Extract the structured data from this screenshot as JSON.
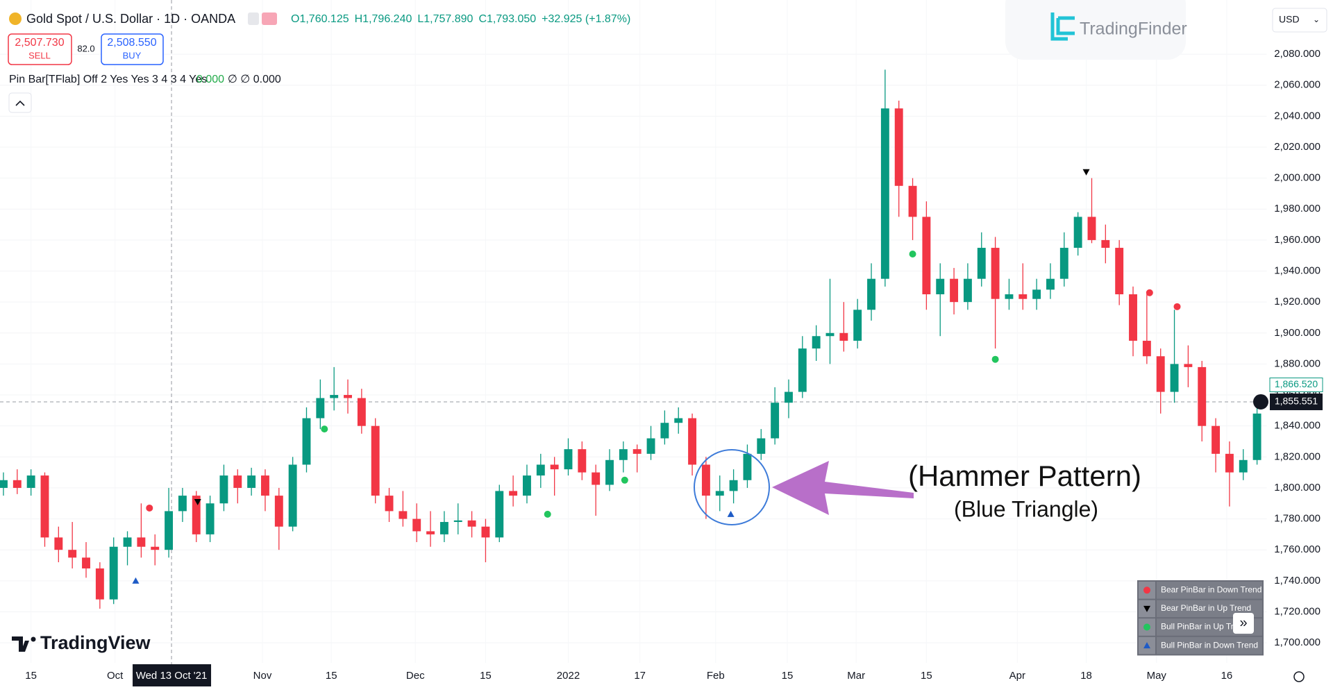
{
  "header": {
    "symbol": "Gold Spot / U.S. Dollar · 1D · OANDA",
    "ohlc": [
      "O1,760.125",
      "H1,796.240",
      "L1,757.890",
      "C1,793.050",
      "+32.925 (+1.87%)"
    ],
    "sell_price": "2,507.730",
    "sell_label": "SELL",
    "spread": "82.0",
    "buy_price": "2,508.550",
    "buy_label": "BUY",
    "indicator": "Pin Bar[TFlab] Off 2 Yes Yes 3 4 3 4 Yes",
    "indicator_value": "0.000",
    "indicator_rest": "∅ ∅ 0.000",
    "currency": "USD",
    "watermark": "TradingFinder",
    "logo": "TradingView"
  },
  "chart_data": {
    "type": "candlestick",
    "up_color": "#089981",
    "down_color": "#f23645",
    "ohlc": [
      [
        1800,
        1810,
        1795,
        1805
      ],
      [
        1805,
        1812,
        1796,
        1800
      ],
      [
        1800,
        1812,
        1795,
        1808
      ],
      [
        1808,
        1810,
        1762,
        1768
      ],
      [
        1768,
        1775,
        1752,
        1760
      ],
      [
        1760,
        1778,
        1748,
        1755
      ],
      [
        1755,
        1765,
        1742,
        1748
      ],
      [
        1748,
        1752,
        1722,
        1728
      ],
      [
        1728,
        1768,
        1725,
        1762
      ],
      [
        1762,
        1772,
        1750,
        1768
      ],
      [
        1768,
        1790,
        1755,
        1762
      ],
      [
        1762,
        1770,
        1750,
        1760
      ],
      [
        1760,
        1800,
        1755,
        1785
      ],
      [
        1785,
        1800,
        1778,
        1795
      ],
      [
        1795,
        1798,
        1765,
        1770
      ],
      [
        1770,
        1795,
        1765,
        1790
      ],
      [
        1790,
        1815,
        1785,
        1808
      ],
      [
        1808,
        1812,
        1790,
        1800
      ],
      [
        1800,
        1813,
        1795,
        1808
      ],
      [
        1808,
        1812,
        1785,
        1795
      ],
      [
        1795,
        1800,
        1760,
        1775
      ],
      [
        1775,
        1820,
        1772,
        1815
      ],
      [
        1815,
        1852,
        1810,
        1845
      ],
      [
        1845,
        1870,
        1838,
        1858
      ],
      [
        1858,
        1878,
        1850,
        1860
      ],
      [
        1860,
        1870,
        1848,
        1858
      ],
      [
        1858,
        1864,
        1835,
        1840
      ],
      [
        1840,
        1845,
        1790,
        1795
      ],
      [
        1795,
        1800,
        1778,
        1785
      ],
      [
        1785,
        1798,
        1775,
        1780
      ],
      [
        1780,
        1790,
        1765,
        1772
      ],
      [
        1772,
        1785,
        1762,
        1770
      ],
      [
        1770,
        1785,
        1765,
        1778
      ],
      [
        1778,
        1790,
        1770,
        1779
      ],
      [
        1779,
        1785,
        1768,
        1775
      ],
      [
        1775,
        1780,
        1752,
        1768
      ],
      [
        1768,
        1802,
        1765,
        1798
      ],
      [
        1798,
        1808,
        1788,
        1795
      ],
      [
        1795,
        1815,
        1790,
        1808
      ],
      [
        1808,
        1822,
        1800,
        1815
      ],
      [
        1815,
        1820,
        1795,
        1812
      ],
      [
        1812,
        1832,
        1808,
        1825
      ],
      [
        1825,
        1830,
        1805,
        1810
      ],
      [
        1810,
        1815,
        1782,
        1802
      ],
      [
        1802,
        1825,
        1798,
        1818
      ],
      [
        1818,
        1830,
        1810,
        1825
      ],
      [
        1825,
        1828,
        1810,
        1822
      ],
      [
        1822,
        1840,
        1818,
        1832
      ],
      [
        1832,
        1850,
        1828,
        1842
      ],
      [
        1842,
        1852,
        1835,
        1845
      ],
      [
        1845,
        1848,
        1808,
        1815
      ],
      [
        1815,
        1820,
        1780,
        1795
      ],
      [
        1795,
        1808,
        1785,
        1798
      ],
      [
        1798,
        1812,
        1790,
        1805
      ],
      [
        1805,
        1828,
        1800,
        1822
      ],
      [
        1822,
        1838,
        1818,
        1832
      ],
      [
        1832,
        1865,
        1828,
        1855
      ],
      [
        1855,
        1870,
        1845,
        1862
      ],
      [
        1862,
        1898,
        1858,
        1890
      ],
      [
        1890,
        1905,
        1882,
        1898
      ],
      [
        1898,
        1935,
        1880,
        1900
      ],
      [
        1900,
        1920,
        1888,
        1895
      ],
      [
        1895,
        1922,
        1890,
        1915
      ],
      [
        1915,
        1945,
        1908,
        1935
      ],
      [
        1935,
        2070,
        1930,
        2045
      ],
      [
        2045,
        2050,
        1975,
        1995
      ],
      [
        1995,
        2000,
        1960,
        1975
      ],
      [
        1975,
        1985,
        1915,
        1925
      ],
      [
        1925,
        1945,
        1898,
        1935
      ],
      [
        1935,
        1942,
        1912,
        1920
      ],
      [
        1920,
        1945,
        1915,
        1935
      ],
      [
        1935,
        1965,
        1930,
        1955
      ],
      [
        1955,
        1962,
        1890,
        1922
      ],
      [
        1922,
        1935,
        1915,
        1925
      ],
      [
        1925,
        1945,
        1915,
        1922
      ],
      [
        1922,
        1935,
        1915,
        1928
      ],
      [
        1928,
        1945,
        1922,
        1935
      ],
      [
        1935,
        1965,
        1930,
        1955
      ],
      [
        1955,
        1978,
        1950,
        1975
      ],
      [
        1975,
        2000,
        1958,
        1960
      ],
      [
        1960,
        1970,
        1945,
        1955
      ],
      [
        1955,
        1960,
        1918,
        1925
      ],
      [
        1925,
        1930,
        1885,
        1895
      ],
      [
        1895,
        1925,
        1880,
        1885
      ],
      [
        1885,
        1890,
        1848,
        1862
      ],
      [
        1862,
        1915,
        1855,
        1880
      ],
      [
        1880,
        1892,
        1865,
        1878
      ],
      [
        1878,
        1882,
        1830,
        1840
      ],
      [
        1840,
        1845,
        1810,
        1822
      ],
      [
        1822,
        1830,
        1788,
        1810
      ],
      [
        1810,
        1825,
        1805,
        1818
      ],
      [
        1818,
        1852,
        1815,
        1848
      ]
    ],
    "xlim": [
      -0.25,
      91.7
    ],
    "ylim": [
      1687,
      2115
    ],
    "xticks": [
      {
        "value": 2.0,
        "label": "15"
      },
      {
        "value": 8.1,
        "label": "Oct"
      },
      {
        "value": 18.8,
        "label": "Nov"
      },
      {
        "value": 23.8,
        "label": "15"
      },
      {
        "value": 29.9,
        "label": "Dec"
      },
      {
        "value": 35.0,
        "label": "15"
      },
      {
        "value": 41.0,
        "label": "2022"
      },
      {
        "value": 46.2,
        "label": "17"
      },
      {
        "value": 51.7,
        "label": "Feb"
      },
      {
        "value": 56.9,
        "label": "15"
      },
      {
        "value": 61.9,
        "label": "Mar"
      },
      {
        "value": 67.0,
        "label": "15"
      },
      {
        "value": 73.6,
        "label": "Apr"
      },
      {
        "value": 78.6,
        "label": "18"
      },
      {
        "value": 83.7,
        "label": "May"
      },
      {
        "value": 88.8,
        "label": "16"
      }
    ],
    "yticks": [
      {
        "value": 1700,
        "label": "1,700.000"
      },
      {
        "value": 1720,
        "label": "1,720.000"
      },
      {
        "value": 1740,
        "label": "1,740.000"
      },
      {
        "value": 1760,
        "label": "1,760.000"
      },
      {
        "value": 1780,
        "label": "1,780.000"
      },
      {
        "value": 1800,
        "label": "1,800.000"
      },
      {
        "value": 1820,
        "label": "1,820.000"
      },
      {
        "value": 1840,
        "label": "1,840.000"
      },
      {
        "value": 1860,
        "label": "1,860.000"
      },
      {
        "value": 1880,
        "label": "1,880.000"
      },
      {
        "value": 1900,
        "label": "1,900.000"
      },
      {
        "value": 1920,
        "label": "1,920.000"
      },
      {
        "value": 1940,
        "label": "1,940.000"
      },
      {
        "value": 1960,
        "label": "1,960.000"
      },
      {
        "value": 1980,
        "label": "1,980.000"
      },
      {
        "value": 2000,
        "label": "2,000.000"
      },
      {
        "value": 2020,
        "label": "2,020.000"
      },
      {
        "value": 2040,
        "label": "2,040.000"
      },
      {
        "value": 2060,
        "label": "2,060.000"
      },
      {
        "value": 2080,
        "label": "2,080.000"
      }
    ],
    "legend": [
      {
        "name": "Bear PinBar in Down Trend",
        "color": "#f23645",
        "shape": "dot"
      },
      {
        "name": "Bear PinBar in Up Trend",
        "color": "#000000",
        "shape": "triangle-down"
      },
      {
        "name": "Bull PinBar in Up Trend",
        "color": "#22c55e",
        "shape": "dot"
      },
      {
        "name": "Bull PinBar in Down Trend",
        "color": "#1e5bc6",
        "shape": "triangle-up"
      }
    ],
    "signals": [
      {
        "x": 10.6,
        "value": 1787,
        "kind": 0
      },
      {
        "x": 14.1,
        "value": 1791,
        "kind": 1
      },
      {
        "x": 9.6,
        "value": 1740,
        "kind": 3
      },
      {
        "x": 23.3,
        "value": 1838,
        "kind": 2
      },
      {
        "x": 39.5,
        "value": 1783,
        "kind": 2
      },
      {
        "x": 45.1,
        "value": 1805,
        "kind": 2
      },
      {
        "x": 52.8,
        "value": 1783,
        "kind": 3
      },
      {
        "x": 66.0,
        "value": 1951,
        "kind": 2
      },
      {
        "x": 72.0,
        "value": 1883,
        "kind": 2
      },
      {
        "x": 78.6,
        "value": 2004,
        "kind": 1
      },
      {
        "x": 83.2,
        "value": 1926,
        "kind": 0
      },
      {
        "x": 85.2,
        "value": 1917,
        "kind": 0
      }
    ],
    "last_price": {
      "value": 1866.52,
      "label": "1,866.520"
    },
    "crosshair": {
      "x": 12.2,
      "x_label": "Wed 13 Oct '21",
      "y": 1855.551,
      "y_label": "1,855.551"
    },
    "annotations": [
      "(Hammer Pattern)",
      "(Blue Triangle)"
    ]
  }
}
